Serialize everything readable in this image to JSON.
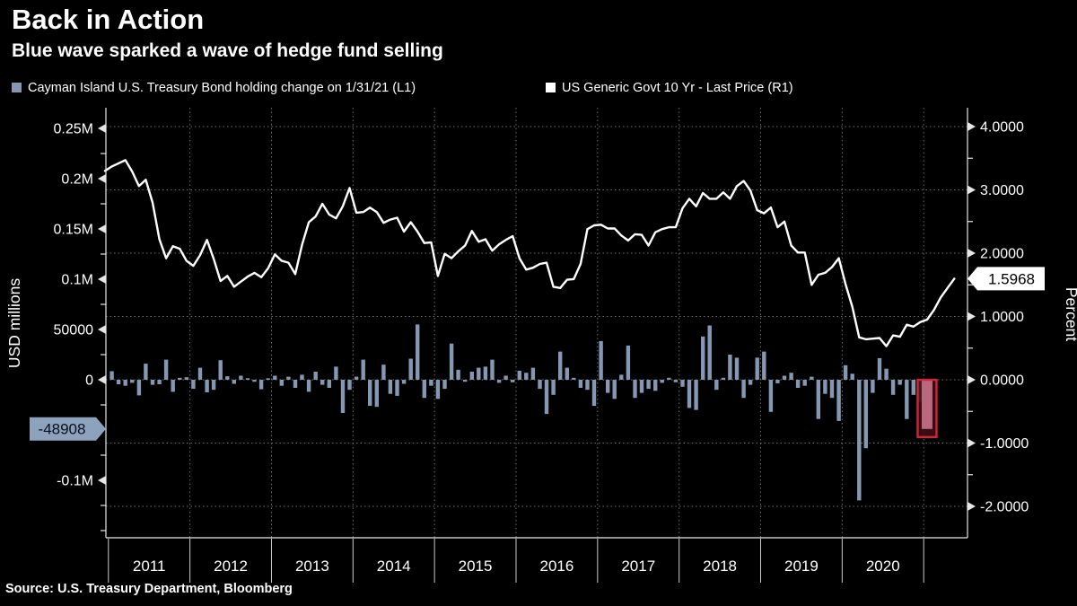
{
  "header": {
    "title": "Back in Action",
    "subtitle": "Blue wave sparked a wave of hedge fund selling"
  },
  "legend": [
    {
      "label": "Cayman Island U.S. Treasury Bond holding change on 1/31/21 (L1)",
      "color": "#8598b3"
    },
    {
      "label": "US Generic Govt 10 Yr - Last Price (R1)",
      "color": "#ffffff"
    }
  ],
  "source": "Source: U.S. Treasury Department, Bloomberg",
  "colors": {
    "background": "#000000",
    "bar": "#8598b3",
    "line": "#ffffff",
    "grid": "#6e6e6e",
    "axis": "#e6e6e6",
    "text": "#ffffff",
    "year_separator": "#cccccc",
    "left_badge_bg": "#8da2bd",
    "left_badge_text": "#0a0f1c",
    "right_badge_bg": "#ffffff",
    "right_badge_text": "#000000",
    "highlight_stroke": "#cf2638",
    "highlight_fill": "#3f0d17",
    "highlight_bar": "#b9687e"
  },
  "axes": {
    "left": {
      "title": "USD millions",
      "ticks": [
        {
          "label": "0.25M",
          "value": 250000
        },
        {
          "label": "0.2M",
          "value": 200000
        },
        {
          "label": "0.15M",
          "value": 150000
        },
        {
          "label": "0.1M",
          "value": 100000
        },
        {
          "label": "50000",
          "value": 50000
        },
        {
          "label": "0",
          "value": 0
        },
        {
          "label": "-0.1M",
          "value": -100000
        }
      ],
      "minor_ticks": [
        225000,
        175000,
        125000,
        75000,
        25000,
        -25000,
        -75000,
        -125000,
        -150000
      ],
      "badge": {
        "label": "-48908",
        "value": -48908
      },
      "range": [
        -157000,
        270000
      ]
    },
    "right": {
      "title": "Percent",
      "ticks": [
        {
          "label": "4.0000",
          "value": 4
        },
        {
          "label": "3.0000",
          "value": 3
        },
        {
          "label": "2.0000",
          "value": 2
        },
        {
          "label": "1.0000",
          "value": 1
        },
        {
          "label": "0.0000",
          "value": 0
        },
        {
          "label": "-1.0000",
          "value": -1
        },
        {
          "label": "-2.0000",
          "value": -2
        }
      ],
      "minor_ticks": [
        3.5,
        2.5,
        1.5,
        0.5,
        -0.5,
        -1.5
      ],
      "badge": {
        "label": "1.5968",
        "value": 1.5968
      },
      "range": [
        -2.5,
        4.3
      ]
    },
    "x": {
      "year_labels": [
        "2011",
        "2012",
        "2013",
        "2014",
        "2015",
        "2016",
        "2017",
        "2018",
        "2019",
        "2020"
      ],
      "boundary_years": [
        2011,
        2012,
        2013,
        2014,
        2015,
        2016,
        2017,
        2018,
        2019,
        2020,
        2021
      ]
    }
  },
  "chart_data": {
    "type": "combo",
    "title": "Back in Action",
    "subtitle": "Blue wave sparked a wave of hedge fund selling",
    "frequency": "monthly",
    "x_domain": [
      "2010-12",
      "2021-06"
    ],
    "grid": "dotted",
    "series": [
      {
        "name": "Cayman Island U.S. Treasury Bond holding change on 1/31/21 (L1)",
        "type": "bar",
        "axis": "L1",
        "ylabel": "USD millions",
        "start": "2011-01",
        "values": [
          8500,
          -4500,
          -6000,
          -3000,
          -15500,
          16000,
          -5000,
          -4500,
          20000,
          -12000,
          2000,
          2500,
          -9000,
          12000,
          -12500,
          -10000,
          19500,
          3500,
          -4000,
          4000,
          1500,
          -2000,
          -9500,
          1500,
          4000,
          -6000,
          3000,
          -8000,
          5000,
          -12000,
          8000,
          -5000,
          -8000,
          13000,
          -33000,
          -10000,
          3000,
          20000,
          -26000,
          -27000,
          15000,
          -14000,
          -16000,
          -4000,
          21000,
          55000,
          -18000,
          -6000,
          -19000,
          -9000,
          36000,
          10000,
          -2000,
          8000,
          12000,
          13000,
          20000,
          -3000,
          4000,
          -2500,
          9000,
          7000,
          12000,
          -9000,
          -34000,
          -15000,
          28000,
          12000,
          2000,
          -8000,
          -10000,
          -26000,
          38500,
          -13000,
          -19000,
          5000,
          34000,
          -18000,
          -13000,
          -9000,
          -11000,
          -3000,
          2000,
          -2500,
          -7000,
          -28000,
          -30000,
          43000,
          54000,
          -10000,
          2000,
          25000,
          22000,
          -18000,
          -5000,
          22000,
          28000,
          -32000,
          -3500,
          4000,
          7000,
          -8000,
          -6000,
          3000,
          -39000,
          -14000,
          -18000,
          -41000,
          14500,
          6000,
          -120000,
          -68000,
          -13000,
          21500,
          11000,
          -15000,
          -5000,
          -39000,
          -15000,
          -22000,
          -48908
        ]
      },
      {
        "name": "US Generic Govt 10 Yr - Last Price (R1)",
        "type": "line",
        "axis": "R1",
        "ylabel": "Percent",
        "start": "2010-12",
        "last_price": 1.5968,
        "values": [
          3.3,
          3.37,
          3.42,
          3.47,
          3.29,
          3.06,
          3.16,
          2.8,
          2.22,
          1.92,
          2.11,
          2.07,
          1.88,
          1.8,
          1.97,
          2.21,
          1.91,
          1.56,
          1.64,
          1.47,
          1.55,
          1.63,
          1.69,
          1.62,
          1.76,
          1.98,
          1.88,
          1.85,
          1.67,
          2.13,
          2.49,
          2.58,
          2.78,
          2.61,
          2.55,
          2.74,
          3.03,
          2.64,
          2.65,
          2.72,
          2.65,
          2.48,
          2.53,
          2.56,
          2.34,
          2.49,
          2.34,
          2.16,
          2.17,
          1.64,
          1.99,
          1.92,
          2.03,
          2.12,
          2.35,
          2.18,
          2.22,
          2.04,
          2.14,
          2.21,
          2.27,
          1.92,
          1.74,
          1.77,
          1.83,
          1.85,
          1.47,
          1.45,
          1.58,
          1.59,
          1.83,
          2.38,
          2.44,
          2.45,
          2.39,
          2.39,
          2.28,
          2.2,
          2.3,
          2.29,
          2.12,
          2.33,
          2.38,
          2.41,
          2.41,
          2.71,
          2.86,
          2.74,
          2.95,
          2.86,
          2.86,
          2.96,
          2.86,
          3.06,
          3.14,
          2.99,
          2.68,
          2.63,
          2.72,
          2.41,
          2.5,
          2.12,
          2.01,
          2.01,
          1.5,
          1.66,
          1.69,
          1.78,
          1.92,
          1.51,
          1.15,
          0.67,
          0.64,
          0.65,
          0.66,
          0.53,
          0.7,
          0.68,
          0.87,
          0.84,
          0.91,
          0.95,
          1.1,
          1.3,
          1.45,
          1.5968
        ]
      }
    ],
    "highlight": {
      "series": "bar",
      "month": "2021-01",
      "value": -48908
    }
  }
}
